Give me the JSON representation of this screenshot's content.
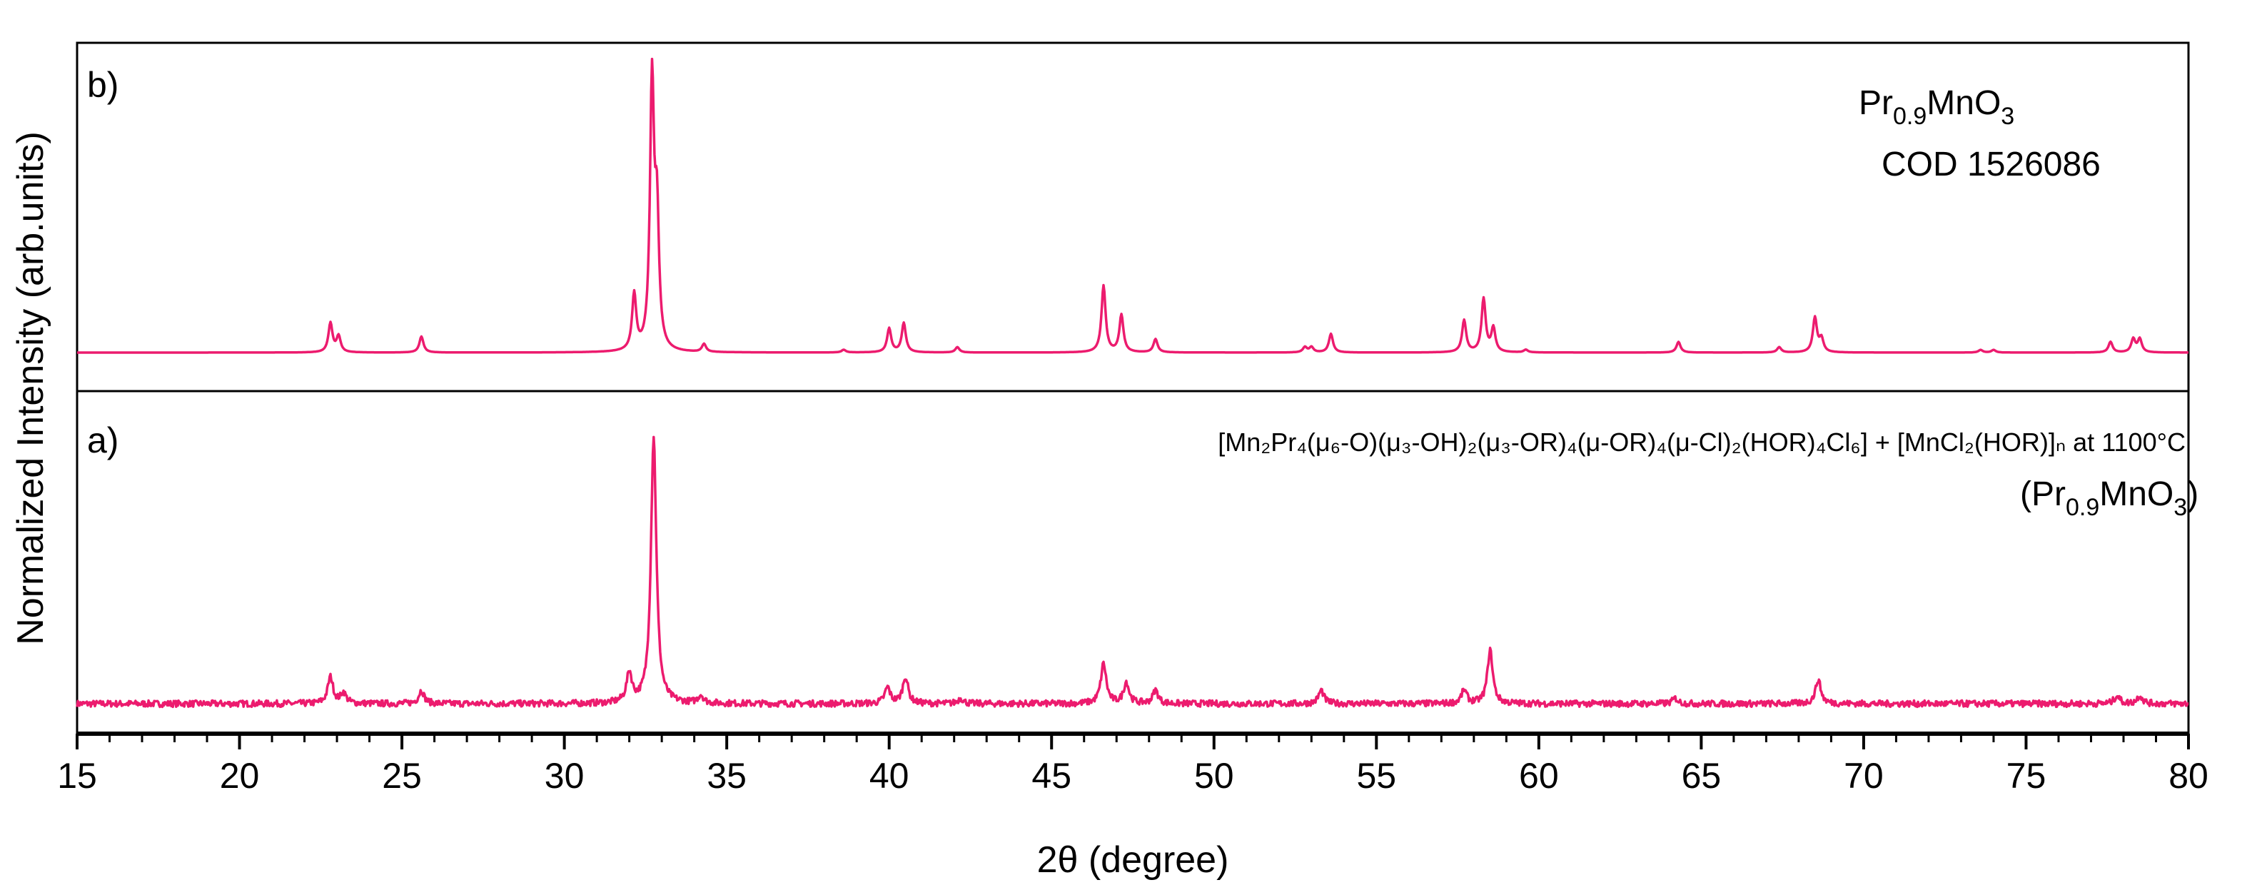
{
  "chart_data": {
    "type": "line",
    "xlabel": "2θ (degree)",
    "ylabel": "Normalized Intensity (arb.units)",
    "xlim": [
      15,
      80
    ],
    "xticks": [
      15,
      20,
      25,
      30,
      35,
      40,
      45,
      50,
      55,
      60,
      65,
      70,
      75,
      80
    ],
    "line_color": "#EC1B6E",
    "panels": [
      {
        "label": "b)",
        "annotation": {
          "formula_base": "Pr",
          "formula_sub1": "0.9",
          "formula_mid": "MnO",
          "formula_sub2": "3",
          "reference": "COD 1526086"
        },
        "baseline": 0.0,
        "noise": 0.0,
        "peaks": [
          {
            "x": 22.8,
            "h": 0.11
          },
          {
            "x": 23.05,
            "h": 0.06
          },
          {
            "x": 25.6,
            "h": 0.06
          },
          {
            "x": 32.15,
            "h": 0.21
          },
          {
            "x": 32.7,
            "h": 1.0
          },
          {
            "x": 32.85,
            "h": 0.48
          },
          {
            "x": 34.3,
            "h": 0.03
          },
          {
            "x": 38.6,
            "h": 0.01
          },
          {
            "x": 40.0,
            "h": 0.09
          },
          {
            "x": 40.45,
            "h": 0.11
          },
          {
            "x": 42.1,
            "h": 0.02
          },
          {
            "x": 46.6,
            "h": 0.25
          },
          {
            "x": 47.15,
            "h": 0.14
          },
          {
            "x": 48.2,
            "h": 0.05
          },
          {
            "x": 52.8,
            "h": 0.02
          },
          {
            "x": 53.0,
            "h": 0.02
          },
          {
            "x": 53.6,
            "h": 0.07
          },
          {
            "x": 57.7,
            "h": 0.12
          },
          {
            "x": 58.3,
            "h": 0.2
          },
          {
            "x": 58.6,
            "h": 0.09
          },
          {
            "x": 59.6,
            "h": 0.01
          },
          {
            "x": 64.3,
            "h": 0.04
          },
          {
            "x": 67.4,
            "h": 0.02
          },
          {
            "x": 68.5,
            "h": 0.13
          },
          {
            "x": 68.7,
            "h": 0.05
          },
          {
            "x": 73.6,
            "h": 0.01
          },
          {
            "x": 74.0,
            "h": 0.01
          },
          {
            "x": 77.6,
            "h": 0.04
          },
          {
            "x": 78.3,
            "h": 0.05
          },
          {
            "x": 78.5,
            "h": 0.05
          }
        ]
      },
      {
        "label": "a)",
        "annotation": {
          "formula_line1": "[Mn₂Pr₄(μ₆-O)(μ₃-OH)₂(μ₃-OR)₄(μ-OR)₄(μ-Cl)₂(HOR)₄Cl₆] + [MnCl₂(HOR)]ₙ  at 1100°C",
          "formula_base": "Pr",
          "formula_sub1": "0.9",
          "formula_mid": "MnO",
          "formula_sub2": "3"
        },
        "baseline": 0.0,
        "noise": 0.012,
        "peaks": [
          {
            "x": 22.8,
            "h": 0.1
          },
          {
            "x": 23.2,
            "h": 0.04
          },
          {
            "x": 25.6,
            "h": 0.05
          },
          {
            "x": 32.0,
            "h": 0.11
          },
          {
            "x": 32.75,
            "h": 1.0
          },
          {
            "x": 34.2,
            "h": 0.03
          },
          {
            "x": 39.95,
            "h": 0.06
          },
          {
            "x": 40.5,
            "h": 0.1
          },
          {
            "x": 42.2,
            "h": 0.02
          },
          {
            "x": 46.6,
            "h": 0.15
          },
          {
            "x": 47.3,
            "h": 0.08
          },
          {
            "x": 48.2,
            "h": 0.05
          },
          {
            "x": 53.3,
            "h": 0.05
          },
          {
            "x": 57.7,
            "h": 0.05
          },
          {
            "x": 58.5,
            "h": 0.2
          },
          {
            "x": 64.2,
            "h": 0.02
          },
          {
            "x": 68.6,
            "h": 0.09
          },
          {
            "x": 77.8,
            "h": 0.03
          },
          {
            "x": 78.5,
            "h": 0.03
          }
        ]
      }
    ]
  }
}
